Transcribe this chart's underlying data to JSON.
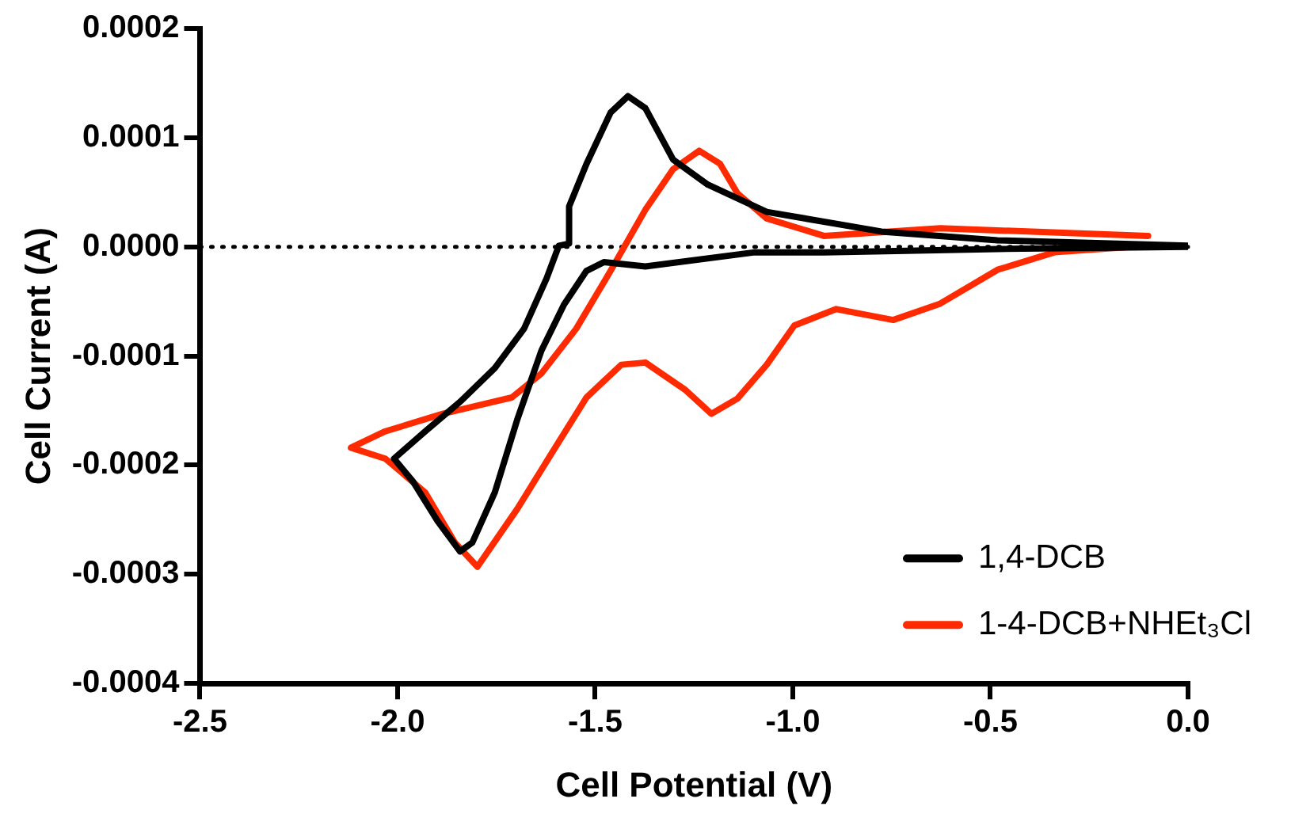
{
  "chart_data": {
    "type": "line",
    "xlabel": "Cell Potential (V)",
    "ylabel": "Cell Current (A)",
    "xlim": [
      -2.5,
      0
    ],
    "ylim": [
      -0.0004,
      0.0002
    ],
    "xticks": [
      {
        "value": -2.5,
        "label": "-2.5"
      },
      {
        "value": -2,
        "label": "-2.0"
      },
      {
        "value": -1.5,
        "label": "-1.5"
      },
      {
        "value": -1,
        "label": "-1.0"
      },
      {
        "value": -0.5,
        "label": "-0.5"
      },
      {
        "value": 0,
        "label": "0.0"
      }
    ],
    "yticks": [
      {
        "value": -0.0004,
        "label": "-0.0004"
      },
      {
        "value": -0.0003,
        "label": "-0.0003"
      },
      {
        "value": -0.0002,
        "label": "-0.0002"
      },
      {
        "value": -0.0001,
        "label": "-0.0001"
      },
      {
        "value": 0,
        "label": "0.0000"
      },
      {
        "value": 0.0001,
        "label": "0.0001"
      },
      {
        "value": 0.0002,
        "label": "0.0002"
      }
    ],
    "grid": false,
    "legend": "bottom right",
    "marker": "none",
    "line_style": "solid",
    "ref_lines": [
      {
        "axis": "y",
        "value": 0,
        "color": "#000000",
        "line_style": "dotted"
      }
    ],
    "series": [
      {
        "name": "1,4-DCB",
        "color": "#000000",
        "x": [
          0,
          -0.482,
          -0.921,
          -1.096,
          -1.373,
          -1.478,
          -1.522,
          -1.579,
          -1.636,
          -1.697,
          -1.754,
          -1.811,
          -1.842,
          -1.899,
          -1.961,
          -2.009,
          -1.93,
          -1.842,
          -1.754,
          -1.68,
          -1.623,
          -1.592,
          -1.566,
          -1.566,
          -1.522,
          -1.461,
          -1.417,
          -1.373,
          -1.303,
          -1.215,
          -1.066,
          -0.776,
          -0.482,
          0
        ],
        "values": [
          0,
          -2e-06,
          -5e-06,
          -5e-06,
          -1.8e-05,
          -1.4e-05,
          -2.2e-05,
          -5.3e-05,
          -9.5e-05,
          -0.000158,
          -0.000225,
          -0.000271,
          -0.000279,
          -0.000251,
          -0.000215,
          -0.000194,
          -0.000169,
          -0.000142,
          -0.000111,
          -7.5e-05,
          -2.9e-05,
          1e-06,
          3e-06,
          3.7e-05,
          7.6e-05,
          0.000123,
          0.000138,
          0.000127,
          8e-05,
          5.7e-05,
          3.2e-05,
          1.4e-05,
          6e-06,
          1e-06
        ]
      },
      {
        "name": "1-4-DCB+NHEt₃Cl",
        "color": "#ff2a00",
        "x": [
          -0.101,
          -0.338,
          -0.482,
          -0.627,
          -0.746,
          -0.89,
          -0.996,
          -1.066,
          -1.14,
          -1.206,
          -1.272,
          -1.373,
          -1.434,
          -1.522,
          -1.61,
          -1.697,
          -1.798,
          -1.855,
          -1.93,
          -2.031,
          -2.118,
          -2.031,
          -1.886,
          -1.711,
          -1.636,
          -1.548,
          -1.461,
          -1.373,
          -1.303,
          -1.237,
          -1.184,
          -1.14,
          -1.066,
          -0.921,
          -0.627,
          -0.101
        ],
        "values": [
          1e-06,
          -5e-06,
          -2.1e-05,
          -5.2e-05,
          -6.7e-05,
          -5.7e-05,
          -7.2e-05,
          -0.000108,
          -0.000139,
          -0.000153,
          -0.000131,
          -0.000106,
          -0.000108,
          -0.000138,
          -0.000189,
          -0.00024,
          -0.000293,
          -0.000271,
          -0.000225,
          -0.000194,
          -0.000184,
          -0.000169,
          -0.000153,
          -0.000138,
          -0.000116,
          -7.5e-05,
          -2.2e-05,
          3.4e-05,
          7.1e-05,
          8.8e-05,
          7.6e-05,
          4.9e-05,
          2.6e-05,
          1e-05,
          1.7e-05,
          1e-05
        ]
      }
    ]
  }
}
